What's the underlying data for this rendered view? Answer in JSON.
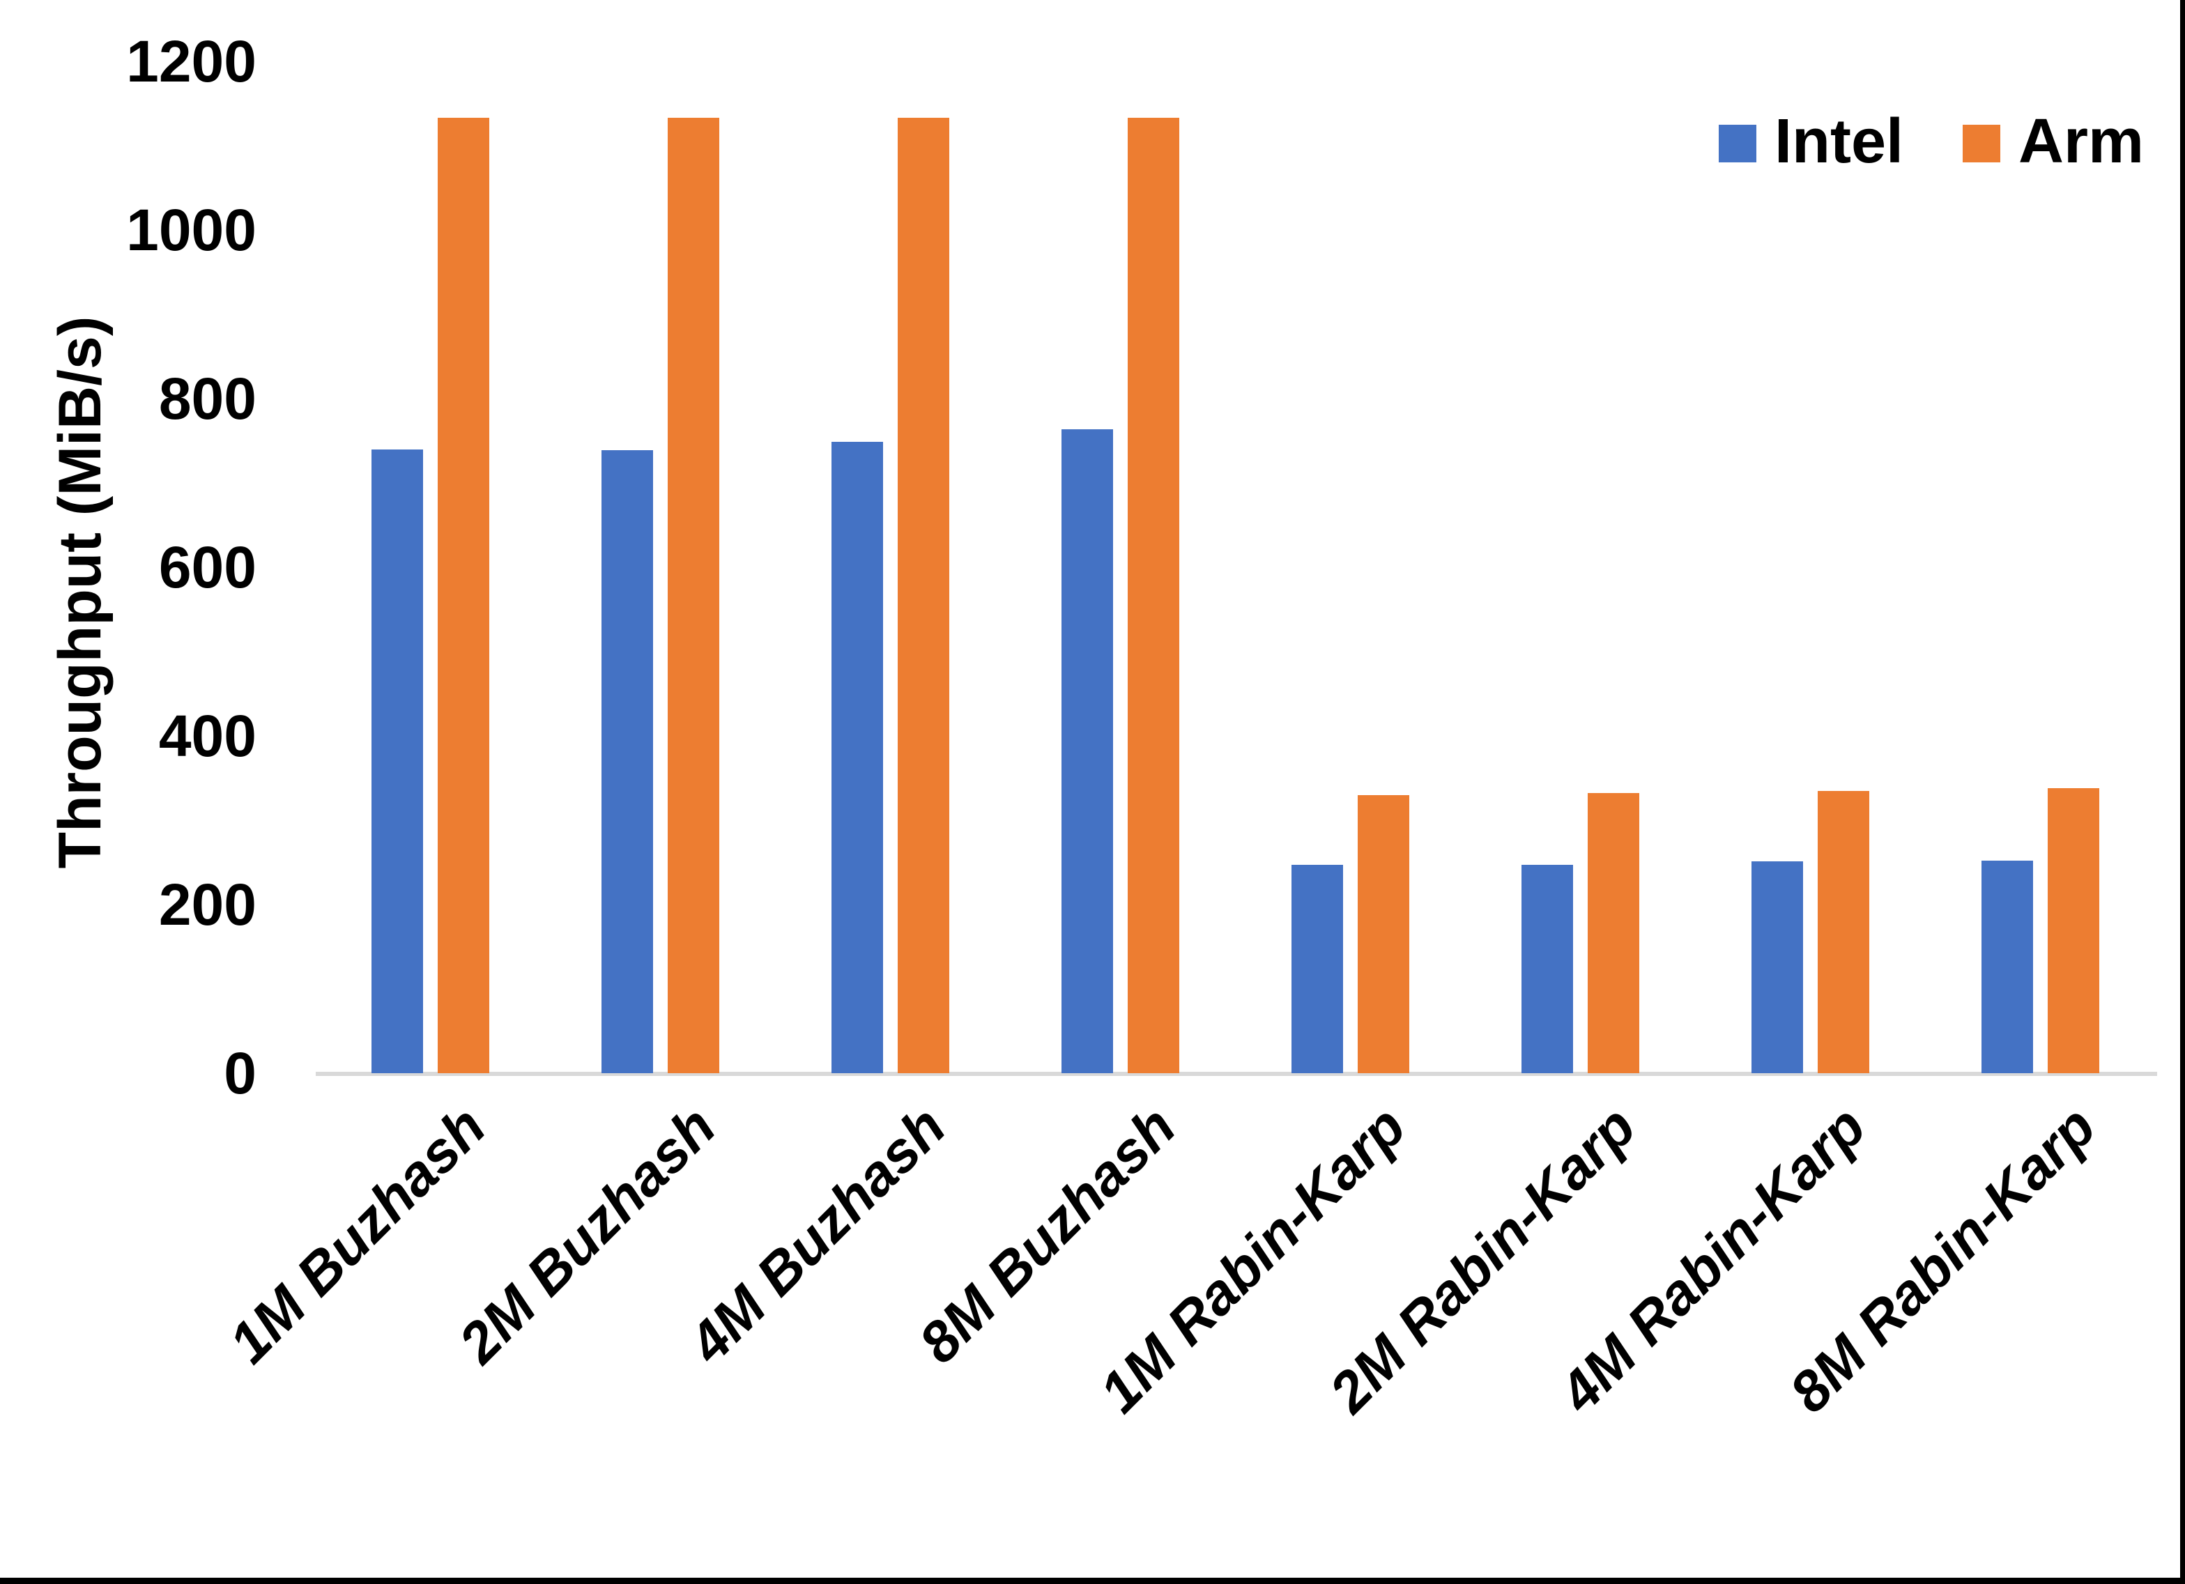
{
  "chart_data": {
    "type": "bar",
    "title": "",
    "xlabel": "",
    "ylabel": "Throughput (MiB/s)",
    "ylim": [
      0,
      1200
    ],
    "yticks": [
      0,
      200,
      400,
      600,
      800,
      1000,
      1200
    ],
    "grid": false,
    "legend_position": "top-right",
    "axis_color": "#D9D9D9",
    "categories": [
      "1M Buzhash",
      "2M Buzhash",
      "4M Buzhash",
      "8M Buzhash",
      "1M Rabin-Karp",
      "2M Rabin-Karp",
      "4M Rabin-Karp",
      "8M Rabin-Karp"
    ],
    "series": [
      {
        "name": "Intel",
        "color": "#4472C4",
        "values": [
          740,
          739,
          749,
          764,
          247,
          247,
          251,
          252
        ]
      },
      {
        "name": "Arm",
        "color": "#ED7D31",
        "values": [
          1133,
          1133,
          1133,
          1133,
          330,
          332,
          335,
          338
        ]
      }
    ]
  },
  "frame": {
    "right_border_color": "#000000",
    "bottom_border_color": "#000000"
  }
}
